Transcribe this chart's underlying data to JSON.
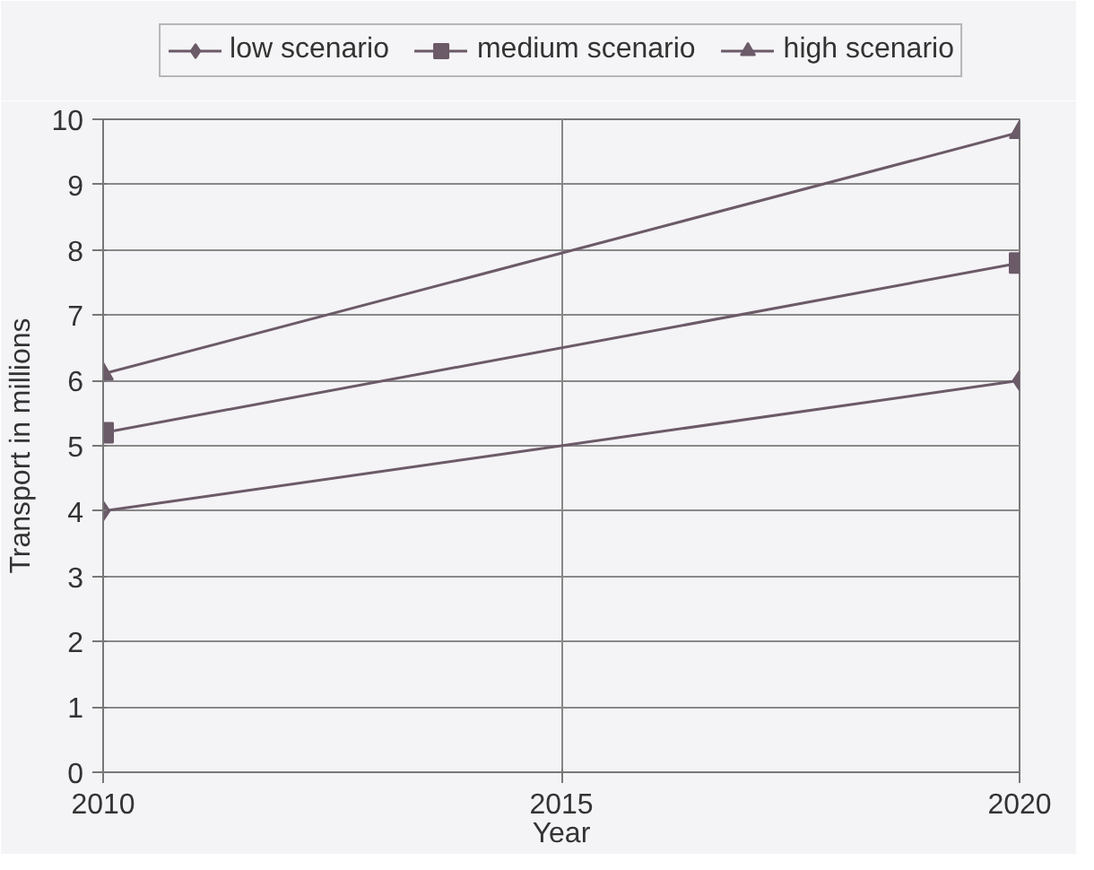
{
  "chart_data": {
    "type": "line",
    "xlabel": "Year",
    "ylabel": "Transport in millions",
    "x": [
      2010,
      2020
    ],
    "series": [
      {
        "name": "low scenario",
        "color": "#6b5a68",
        "values": [
          4.0,
          6.0
        ],
        "marker": "diamond"
      },
      {
        "name": "medium scenario",
        "color": "#6b5a68",
        "values": [
          5.2,
          7.8
        ],
        "marker": "square"
      },
      {
        "name": "high scenario",
        "color": "#6b5a68",
        "values": [
          6.1,
          9.8
        ],
        "marker": "triangle"
      }
    ],
    "xlim": [
      2010,
      2020
    ],
    "xticks": [
      2010,
      2015,
      2020
    ],
    "ylim": [
      0,
      10
    ],
    "yticks": [
      0,
      1,
      2,
      3,
      4,
      5,
      6,
      7,
      8,
      9,
      10
    ],
    "grid": true,
    "legend": "top",
    "line_style": "solid"
  }
}
